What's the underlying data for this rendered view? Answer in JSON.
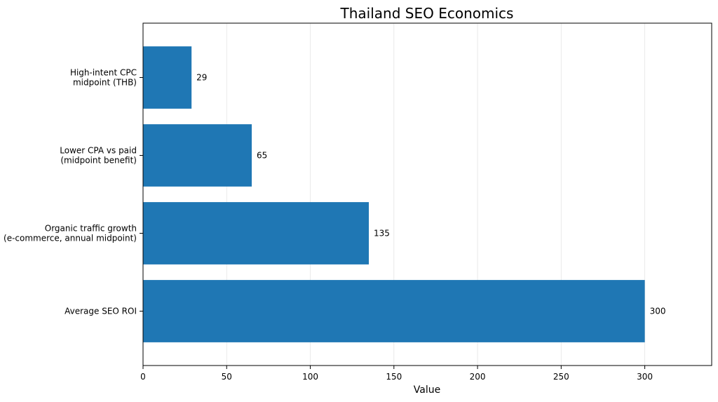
{
  "chart_data": {
    "type": "bar",
    "orientation": "horizontal",
    "title": "Thailand SEO Economics",
    "xlabel": "Value",
    "ylabel": "",
    "categories": [
      [
        "Average SEO ROI"
      ],
      [
        "Organic traffic growth",
        "(e-commerce, annual midpoint)"
      ],
      [
        "Lower CPA vs paid",
        "(midpoint benefit)"
      ],
      [
        "High-intent CPC",
        "midpoint (THB)"
      ]
    ],
    "values": [
      300,
      135,
      65,
      29
    ],
    "value_labels": [
      "300",
      "135",
      "65",
      "29"
    ],
    "xlim": [
      0,
      340
    ],
    "xticks": [
      0,
      50,
      100,
      150,
      200,
      250,
      300
    ],
    "grid": "vertical",
    "bar_color": "#1f77b4"
  }
}
